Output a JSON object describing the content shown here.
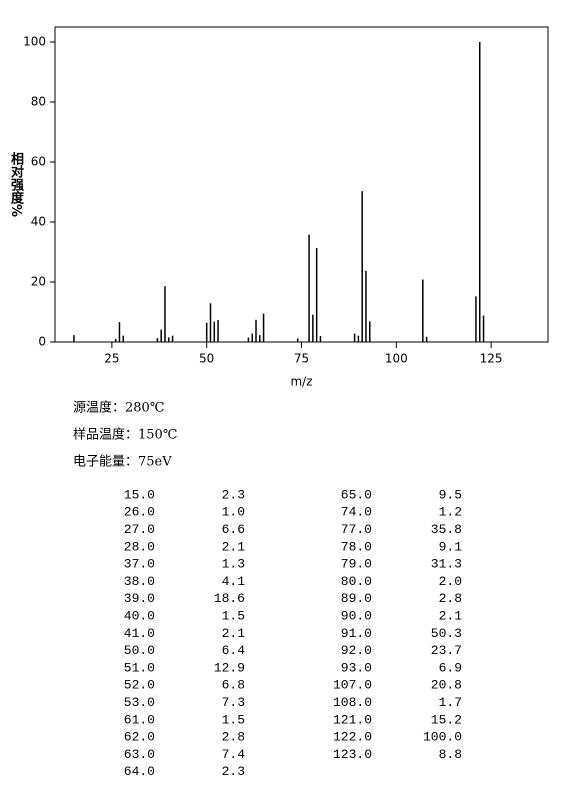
{
  "chart_data": {
    "type": "bar",
    "xlabel": "m/z",
    "ylabel": "相对强度%",
    "x": [
      15,
      26,
      27,
      28,
      37,
      38,
      39,
      40,
      41,
      50,
      51,
      52,
      53,
      61,
      62,
      63,
      64,
      65,
      74,
      77,
      78,
      79,
      80,
      89,
      90,
      91,
      92,
      93,
      107,
      108,
      121,
      122,
      123
    ],
    "values": [
      2.3,
      1.0,
      6.6,
      2.1,
      1.3,
      4.1,
      18.6,
      1.5,
      2.1,
      6.4,
      12.9,
      6.8,
      7.3,
      1.5,
      2.8,
      7.4,
      2.3,
      9.5,
      1.2,
      35.8,
      9.1,
      31.3,
      2.0,
      2.8,
      2.1,
      50.3,
      23.7,
      6.9,
      20.8,
      1.7,
      15.2,
      100.0,
      8.8
    ],
    "color": "#000000",
    "xlim": [
      10,
      140
    ],
    "xticks": [
      25,
      50,
      75,
      100,
      125
    ],
    "ylim": [
      0,
      105
    ],
    "yticks": [
      0,
      20,
      40,
      60,
      80,
      100
    ]
  },
  "notes": [
    "源温度：280℃",
    "样品温度：150℃",
    "电子能量：75eV"
  ],
  "table": {
    "left": [
      [
        "15.0",
        "2.3"
      ],
      [
        "26.0",
        "1.0"
      ],
      [
        "27.0",
        "6.6"
      ],
      [
        "28.0",
        "2.1"
      ],
      [
        "37.0",
        "1.3"
      ],
      [
        "38.0",
        "4.1"
      ],
      [
        "39.0",
        "18.6"
      ],
      [
        "40.0",
        "1.5"
      ],
      [
        "41.0",
        "2.1"
      ],
      [
        "50.0",
        "6.4"
      ],
      [
        "51.0",
        "12.9"
      ],
      [
        "52.0",
        "6.8"
      ],
      [
        "53.0",
        "7.3"
      ],
      [
        "61.0",
        "1.5"
      ],
      [
        "62.0",
        "2.8"
      ],
      [
        "63.0",
        "7.4"
      ],
      [
        "64.0",
        "2.3"
      ]
    ],
    "right": [
      [
        "65.0",
        "9.5"
      ],
      [
        "74.0",
        "1.2"
      ],
      [
        "77.0",
        "35.8"
      ],
      [
        "78.0",
        "9.1"
      ],
      [
        "79.0",
        "31.3"
      ],
      [
        "80.0",
        "2.0"
      ],
      [
        "89.0",
        "2.8"
      ],
      [
        "90.0",
        "2.1"
      ],
      [
        "91.0",
        "50.3"
      ],
      [
        "92.0",
        "23.7"
      ],
      [
        "93.0",
        "6.9"
      ],
      [
        "107.0",
        "20.8"
      ],
      [
        "108.0",
        "1.7"
      ],
      [
        "121.0",
        "15.2"
      ],
      [
        "122.0",
        "100.0"
      ],
      [
        "123.0",
        "8.8"
      ]
    ]
  }
}
